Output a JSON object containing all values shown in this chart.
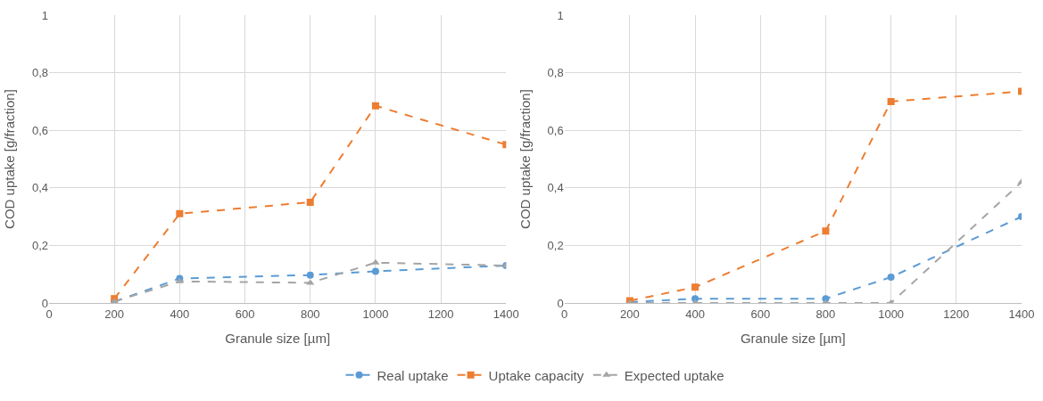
{
  "chart_data": [
    {
      "type": "line",
      "xlabel": "Granule size [µm]",
      "ylabel": "COD uptake [g/fraction]",
      "x": [
        200,
        400,
        800,
        1000,
        1400
      ],
      "series": [
        {
          "name": "Real uptake",
          "color": "#5b9bd5",
          "marker": "circle",
          "values": [
            0.005,
            0.085,
            0.097,
            0.11,
            0.13
          ]
        },
        {
          "name": "Uptake capacity",
          "color": "#ed7d31",
          "marker": "square",
          "values": [
            0.015,
            0.31,
            0.35,
            0.685,
            0.55
          ]
        },
        {
          "name": "Expected uptake",
          "color": "#a5a5a5",
          "marker": "triangle",
          "values": [
            0.005,
            0.075,
            0.07,
            0.14,
            0.13
          ]
        }
      ],
      "xlim": [
        0,
        1400
      ],
      "xticks": [
        0,
        200,
        400,
        600,
        800,
        1000,
        1200,
        1400
      ],
      "ylim": [
        0,
        1
      ],
      "yticks": [
        0,
        {
          "value": 0.2,
          "label": "0,2"
        },
        {
          "value": 0.4,
          "label": "0,4"
        },
        {
          "value": 0.6,
          "label": "0,6"
        },
        {
          "value": 0.8,
          "label": "0,8"
        },
        1
      ],
      "grid": true,
      "line_style": "dashed",
      "legend": "bottom"
    },
    {
      "type": "line",
      "xlabel": "Granule size [µm]",
      "ylabel": "COD uptake [g/fraction]",
      "x": [
        200,
        400,
        800,
        1000,
        1400
      ],
      "series": [
        {
          "color": "#5b9bd5",
          "marker": "circle",
          "values": [
            0.003,
            0.015,
            0.015,
            0.09,
            0.3
          ]
        },
        {
          "color": "#ed7d31",
          "marker": "square",
          "values": [
            0.008,
            0.055,
            0.25,
            0.7,
            0.735
          ]
        },
        {
          "color": "#a5a5a5",
          "marker": "triangle",
          "values": [
            0,
            0,
            0,
            0,
            0.42
          ]
        }
      ],
      "xlim": [
        0,
        1400
      ],
      "xticks": [
        0,
        200,
        400,
        600,
        800,
        1000,
        1200,
        1400
      ],
      "ylim": [
        0,
        1
      ],
      "yticks": [
        0,
        {
          "value": 0.2,
          "label": "0,2"
        },
        {
          "value": 0.4,
          "label": "0,4"
        },
        {
          "value": 0.6,
          "label": "0,6"
        },
        {
          "value": 0.8,
          "label": "0,8"
        },
        1
      ],
      "grid": true,
      "line_style": "dashed"
    }
  ]
}
